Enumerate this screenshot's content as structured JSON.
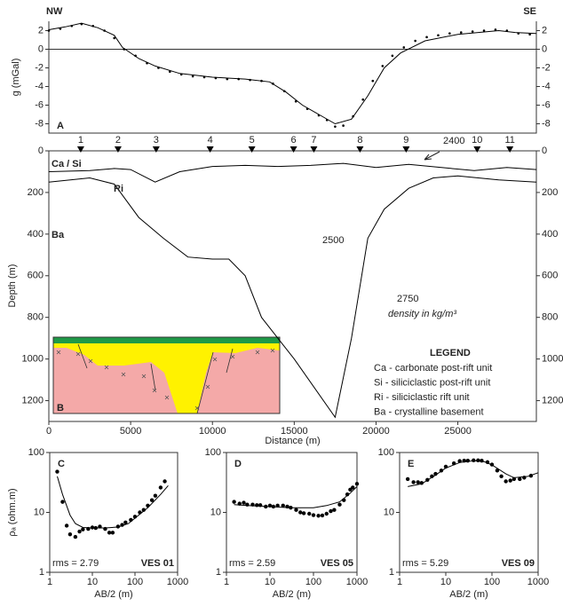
{
  "chart_data": [
    {
      "type": "line",
      "panel": "A",
      "left_label": "NW",
      "right_label": "SE",
      "y_label": "g (mGal)",
      "xlim": [
        0,
        29800
      ],
      "ylim": [
        -9,
        3
      ],
      "yticks": [
        -8,
        -6,
        -4,
        -2,
        0,
        2
      ],
      "zero_line": true,
      "series": [
        {
          "style": "dots",
          "color": "#000000",
          "x": [
            0,
            700,
            1400,
            2000,
            2700,
            3400,
            4000,
            4600,
            5300,
            6000,
            6700,
            7400,
            8100,
            8800,
            9500,
            10200,
            10900,
            11600,
            12300,
            13000,
            13700,
            14400,
            15100,
            15800,
            16500,
            17000,
            17500,
            18000,
            18600,
            19200,
            19800,
            20400,
            21000,
            21700,
            22400,
            23100,
            23800,
            24500,
            25200,
            25900,
            26600,
            27300,
            28000,
            28700,
            29400
          ],
          "values": [
            2.0,
            2.2,
            2.5,
            2.7,
            2.5,
            2.0,
            1.2,
            0.0,
            -0.7,
            -1.5,
            -2.0,
            -2.4,
            -2.7,
            -2.9,
            -3.0,
            -3.1,
            -3.2,
            -3.2,
            -3.3,
            -3.4,
            -3.7,
            -4.5,
            -5.6,
            -6.4,
            -7.1,
            -7.6,
            -8.3,
            -8.2,
            -7.2,
            -5.4,
            -3.4,
            -1.8,
            -0.7,
            0.2,
            0.9,
            1.3,
            1.5,
            1.7,
            1.8,
            1.9,
            2.0,
            2.1,
            2.0,
            1.7,
            1.6
          ]
        },
        {
          "style": "line",
          "color": "#000000",
          "x": [
            0,
            1000,
            2000,
            3000,
            4000,
            4500,
            5500,
            6500,
            8000,
            10000,
            12000,
            13500,
            14500,
            15500,
            16500,
            17500,
            18500,
            19500,
            20500,
            21500,
            23000,
            25000,
            27500,
            28500,
            29800
          ],
          "values": [
            2.1,
            2.4,
            2.8,
            2.3,
            1.5,
            0.2,
            -1.0,
            -1.8,
            -2.6,
            -3.0,
            -3.2,
            -3.5,
            -4.6,
            -6.0,
            -7.0,
            -8.0,
            -7.5,
            -5.0,
            -2.0,
            -0.4,
            0.9,
            1.6,
            2.0,
            1.8,
            1.7
          ]
        }
      ]
    },
    {
      "type": "line",
      "panel": "B",
      "x_label": "Distance (m)",
      "y_label": "Depth (m)",
      "xlim": [
        0,
        29800
      ],
      "ylim": [
        1300,
        0
      ],
      "xticks": [
        0,
        5000,
        10000,
        15000,
        20000,
        25000
      ],
      "yticks": [
        0,
        200,
        400,
        600,
        800,
        1000,
        1200
      ],
      "units": [
        "Ca / Si",
        "Ri",
        "Ba"
      ],
      "densities": [
        2400,
        2500,
        2750
      ],
      "density_note": "density in kg/m³",
      "stations": {
        "labels": [
          1,
          2,
          3,
          4,
          5,
          6,
          7,
          8,
          9,
          10,
          11
        ],
        "x": [
          1950,
          4230,
          6560,
          9860,
          12410,
          14960,
          16200,
          19020,
          21840,
          26180,
          28180
        ]
      },
      "legend": {
        "title": "LEGEND",
        "items": [
          "Ca - carbonate post-rift unit",
          "Si - siliciclastic post-rift unit",
          "Ri - siliciclastic rift unit",
          "Ba - crystalline basement"
        ]
      },
      "series": [
        {
          "style": "line",
          "color": "#000000",
          "x": [
            0,
            2500,
            4000,
            5000,
            6500,
            8000,
            10000,
            12000,
            14000,
            16000,
            18000,
            20000,
            22000,
            24000,
            26000,
            28000,
            29800
          ],
          "values": [
            100,
            95,
            85,
            90,
            150,
            100,
            75,
            70,
            75,
            70,
            60,
            80,
            65,
            80,
            95,
            80,
            90
          ]
        },
        {
          "style": "line",
          "color": "#000000",
          "x": [
            0,
            2500,
            4000,
            5500,
            7000,
            8500,
            10000,
            11000,
            12000,
            13000,
            14000,
            15000,
            17500,
            18500,
            19500,
            20500,
            22000,
            23500,
            25000,
            27500,
            29800
          ],
          "values": [
            150,
            130,
            160,
            320,
            420,
            510,
            520,
            520,
            600,
            800,
            900,
            1000,
            1280,
            900,
            420,
            280,
            180,
            130,
            120,
            140,
            150
          ]
        }
      ]
    },
    {
      "type": "scatter",
      "panel": "C",
      "rms": "rms = 2.79",
      "name": "VES 01",
      "x_label": "AB/2 (m)",
      "y_label": "ρₐ (ohm.m)",
      "xlog": true,
      "ylog": true,
      "xlim": [
        1,
        1000
      ],
      "ylim": [
        1,
        100
      ],
      "xticks": [
        1,
        10,
        100,
        1000
      ],
      "yticks": [
        1,
        10,
        100
      ],
      "series": [
        {
          "style": "dots",
          "color": "#000000",
          "x": [
            1.5,
            2,
            2.5,
            3,
            4,
            5,
            6,
            8,
            10,
            12,
            15,
            20,
            25,
            30,
            40,
            50,
            60,
            80,
            100,
            130,
            160,
            200,
            250,
            300,
            400,
            500
          ],
          "values": [
            48,
            15,
            6,
            4.3,
            3.9,
            4.8,
            5.2,
            5.3,
            5.6,
            5.5,
            5.8,
            5.3,
            4.6,
            4.6,
            5.8,
            6.2,
            6.8,
            7.5,
            8.5,
            10,
            11,
            13,
            16,
            19,
            26,
            33
          ]
        },
        {
          "style": "line",
          "color": "#000000",
          "x": [
            1.5,
            2,
            3,
            4,
            6,
            10,
            20,
            40,
            70,
            100,
            200,
            400,
            600
          ],
          "values": [
            40,
            20,
            9,
            6.5,
            5.6,
            5.5,
            5.5,
            5.7,
            6.5,
            8,
            12,
            20,
            28
          ]
        }
      ]
    },
    {
      "type": "scatter",
      "panel": "D",
      "rms": "rms = 2.59",
      "name": "VES 05",
      "x_label": "AB/2 (m)",
      "xlog": true,
      "ylog": true,
      "xlim": [
        1,
        1000
      ],
      "ylim": [
        1,
        100
      ],
      "xticks": [
        1,
        10,
        100,
        1000
      ],
      "yticks": [
        1,
        10,
        100
      ],
      "series": [
        {
          "style": "dots",
          "color": "#000000",
          "x": [
            1.5,
            2,
            2.5,
            3,
            4,
            5,
            6,
            8,
            10,
            12,
            15,
            20,
            25,
            30,
            40,
            50,
            60,
            80,
            100,
            130,
            160,
            200,
            250,
            300,
            400,
            500,
            600,
            700,
            800,
            1000
          ],
          "values": [
            15,
            14,
            14.5,
            13.5,
            13.5,
            13.2,
            13.2,
            12.5,
            13,
            12.5,
            13,
            13,
            12.5,
            12,
            11,
            10,
            9.7,
            9.5,
            9,
            8.8,
            8.9,
            9.5,
            10.5,
            11,
            13.5,
            16,
            20,
            24,
            26,
            30
          ]
        },
        {
          "style": "line",
          "color": "#000000",
          "x": [
            1.5,
            3,
            10,
            30,
            100,
            200,
            400,
            700,
            1000
          ],
          "values": [
            13.5,
            13,
            12.5,
            12,
            12,
            13,
            15,
            21,
            27
          ]
        }
      ]
    },
    {
      "type": "scatter",
      "panel": "E",
      "rms": "rms = 5.29",
      "name": "VES 09",
      "x_label": "AB/2 (m)",
      "xlog": true,
      "ylog": true,
      "xlim": [
        1,
        1000
      ],
      "ylim": [
        1,
        100
      ],
      "xticks": [
        1,
        10,
        100,
        1000
      ],
      "yticks": [
        1,
        10,
        100
      ],
      "series": [
        {
          "style": "dots",
          "color": "#000000",
          "x": [
            1.5,
            2,
            2.5,
            3,
            4,
            5,
            6,
            8,
            10,
            15,
            20,
            25,
            30,
            40,
            50,
            60,
            80,
            100,
            130,
            160,
            200,
            250,
            300,
            400,
            500,
            700
          ],
          "values": [
            36,
            32,
            32,
            31,
            35,
            40,
            44,
            50,
            58,
            66,
            72,
            73,
            73,
            74,
            74,
            73,
            69,
            63,
            50,
            40,
            33,
            34,
            36,
            36,
            38,
            41
          ]
        },
        {
          "style": "line",
          "color": "#000000",
          "x": [
            1.5,
            3,
            6,
            10,
            20,
            40,
            70,
            100,
            200,
            300,
            600,
            1000
          ],
          "values": [
            27,
            30,
            42,
            55,
            68,
            73,
            70,
            62,
            44,
            38,
            40,
            46
          ]
        }
      ]
    }
  ]
}
